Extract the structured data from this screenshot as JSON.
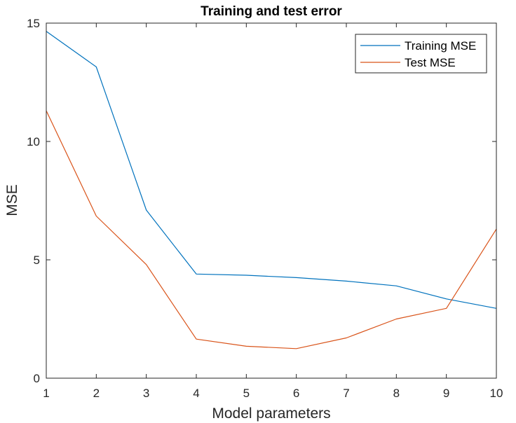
{
  "chart_data": {
    "type": "line",
    "title": "Training and test error",
    "xlabel": "Model parameters",
    "ylabel": "MSE",
    "x": [
      1,
      2,
      3,
      4,
      5,
      6,
      7,
      8,
      9,
      10
    ],
    "xlim": [
      1,
      10
    ],
    "ylim": [
      0,
      15
    ],
    "xticks": [
      "1",
      "2",
      "3",
      "4",
      "5",
      "6",
      "7",
      "8",
      "9",
      "10"
    ],
    "yticks": [
      "0",
      "5",
      "10",
      "15"
    ],
    "grid": false,
    "legend_position": "top-right",
    "series": [
      {
        "name": "Training MSE",
        "color": "#0072BD",
        "values": [
          14.65,
          13.15,
          7.1,
          4.4,
          4.35,
          4.25,
          4.1,
          3.9,
          3.35,
          2.95
        ]
      },
      {
        "name": "Test MSE",
        "color": "#D95319",
        "values": [
          11.3,
          6.85,
          4.8,
          1.65,
          1.35,
          1.25,
          1.7,
          2.5,
          2.95,
          6.3
        ]
      }
    ]
  }
}
